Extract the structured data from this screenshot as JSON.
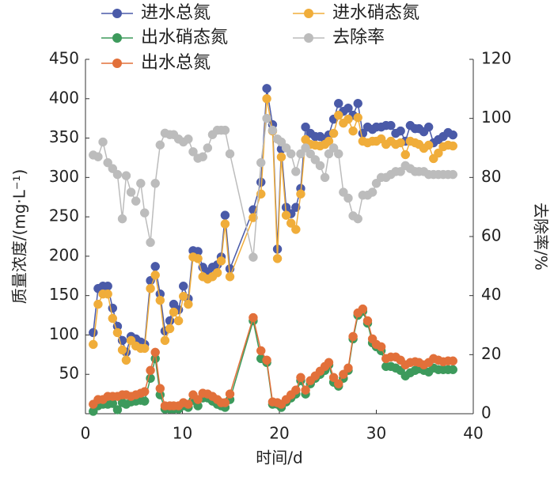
{
  "chart_data": {
    "type": "line",
    "x_label": "时间/d",
    "y_label": "质量浓度/(mg·L⁻¹)",
    "y2_label": "去除率/%",
    "x": [
      0.8,
      1.3,
      1.8,
      2.3,
      2.8,
      3.3,
      3.8,
      4.2,
      4.7,
      5.2,
      5.7,
      6.1,
      6.7,
      7.2,
      7.7,
      8.2,
      8.7,
      9.1,
      9.6,
      10.1,
      10.6,
      11.1,
      11.6,
      12.1,
      12.6,
      13.1,
      13.6,
      14.0,
      14.4,
      14.9,
      17.3,
      18.1,
      18.7,
      19.3,
      19.8,
      20.2,
      20.7,
      21.2,
      21.7,
      22.2,
      22.7,
      23.2,
      23.7,
      24.2,
      24.7,
      25.1,
      25.6,
      26.1,
      26.6,
      27.1,
      27.6,
      28.1,
      28.6,
      29.1,
      29.6,
      30.0,
      30.5,
      31.0,
      31.5,
      32.0,
      32.5,
      33.0,
      33.5,
      34.0,
      34.4,
      34.9,
      35.4,
      35.9,
      36.4,
      36.9,
      37.4,
      37.9
    ],
    "series": [
      {
        "name": "进水总氮",
        "color": "#4a5aa8",
        "values": [
          103,
          159,
          162,
          162,
          134,
          111,
          93,
          78,
          98,
          95,
          91,
          88,
          169,
          187,
          152,
          105,
          118,
          139,
          132,
          162,
          146,
          207,
          206,
          186,
          180,
          186,
          189,
          199,
          252,
          184,
          259,
          294,
          413,
          367,
          209,
          336,
          262,
          254,
          262,
          286,
          364,
          356,
          352,
          352,
          349,
          354,
          374,
          394,
          384,
          388,
          379,
          394,
          356,
          364,
          361,
          364,
          364,
          366,
          366,
          356,
          359,
          346,
          366,
          362,
          362,
          358,
          364,
          344,
          348,
          352,
          357,
          354
        ]
      },
      {
        "name": "进水硝态氮",
        "color": "#f0ad3a",
        "values": [
          88,
          139,
          152,
          152,
          121,
          103,
          81,
          68,
          93,
          86,
          83,
          83,
          159,
          176,
          144,
          93,
          108,
          129,
          118,
          149,
          139,
          199,
          197,
          174,
          171,
          174,
          179,
          194,
          241,
          174,
          249,
          279,
          400,
          359,
          197,
          326,
          252,
          242,
          234,
          279,
          348,
          342,
          341,
          340,
          342,
          346,
          356,
          379,
          369,
          374,
          359,
          376,
          346,
          344,
          346,
          346,
          349,
          342,
          346,
          342,
          344,
          329,
          346,
          344,
          342,
          337,
          341,
          324,
          331,
          339,
          341,
          340
        ]
      },
      {
        "name": "出水硝态氮",
        "color": "#3d9a5c",
        "values": [
          3,
          10,
          12,
          12,
          13,
          5,
          14,
          12,
          15,
          16,
          17,
          16,
          45,
          70,
          24,
          6,
          6,
          6,
          6,
          10,
          8,
          17,
          10,
          20,
          20,
          16,
          12,
          10,
          8,
          18,
          118,
          70,
          65,
          12,
          12,
          8,
          15,
          20,
          25,
          42,
          25,
          38,
          45,
          50,
          55,
          62,
          40,
          35,
          45,
          55,
          95,
          125,
          130,
          115,
          90,
          85,
          80,
          60,
          60,
          58,
          55,
          48,
          52,
          55,
          57,
          55,
          53,
          58,
          56,
          56,
          56,
          56
        ]
      },
      {
        "name": "去除率",
        "color": "#bcbcbc",
        "axis": "y2",
        "values": [
          87.6,
          87,
          92,
          85,
          83,
          81,
          66,
          80.6,
          75,
          72,
          78,
          68,
          58,
          78,
          91,
          95,
          94.5,
          94.5,
          93,
          92,
          93,
          88.7,
          86.5,
          87,
          90,
          94.5,
          96,
          96,
          96,
          88,
          53,
          85,
          100,
          96,
          93,
          92,
          90,
          88,
          82,
          88,
          90,
          88,
          86,
          84,
          80,
          88,
          90,
          88,
          75,
          73,
          67,
          66,
          74,
          74,
          75,
          78,
          80,
          80,
          81,
          82,
          82,
          84,
          83,
          82,
          82,
          82,
          81,
          81,
          81,
          81,
          81,
          81
        ]
      },
      {
        "name": "出水总氮",
        "color": "#e2703a",
        "values": [
          12,
          18,
          18,
          22,
          22,
          22,
          24,
          24,
          22,
          24,
          26,
          28,
          55,
          78,
          32,
          10,
          10,
          10,
          10,
          14,
          12,
          24,
          18,
          26,
          25,
          22,
          18,
          14,
          14,
          25,
          122,
          80,
          68,
          15,
          14,
          12,
          18,
          24,
          30,
          46,
          30,
          42,
          48,
          54,
          60,
          65,
          46,
          38,
          50,
          58,
          98,
          128,
          133,
          118,
          95,
          88,
          85,
          70,
          72,
          72,
          68,
          62,
          65,
          66,
          65,
          62,
          65,
          70,
          68,
          66,
          67,
          67
        ]
      }
    ],
    "xlim": [
      0,
      40
    ],
    "xticks": [
      0,
      10,
      20,
      30,
      40
    ],
    "ylim": [
      0,
      450
    ],
    "yticks": [
      50,
      100,
      150,
      200,
      250,
      300,
      350,
      400,
      450
    ],
    "y2lim": [
      0,
      120
    ],
    "y2ticks": [
      0,
      20,
      40,
      60,
      80,
      100,
      120
    ]
  }
}
